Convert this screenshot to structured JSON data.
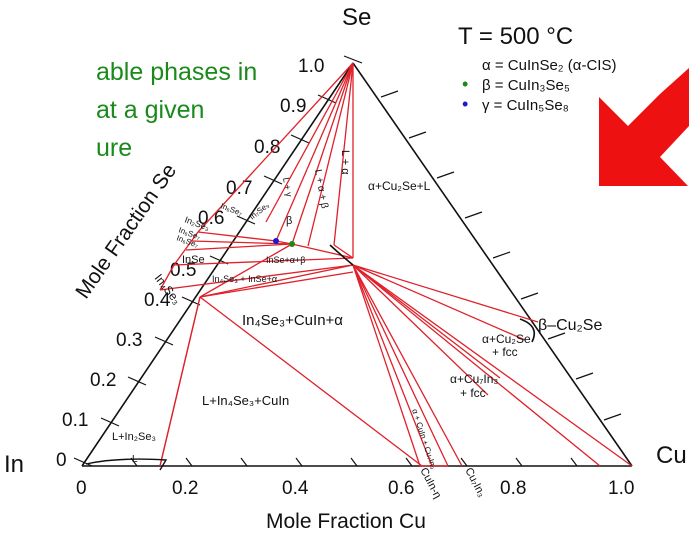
{
  "title_lines": [
    "able phases in",
    "at a given",
    "ure"
  ],
  "temperature": "T = 500 °C",
  "vertices": {
    "top": "Se",
    "left": "In",
    "right": "Cu"
  },
  "axes": {
    "left_label": "Mole Fraction Se",
    "bottom_label": "Mole Fraction Cu",
    "se_ticks": [
      "0",
      "0.1",
      "0.2",
      "0.3",
      "0.4",
      "0.5",
      "0.6",
      "0.7",
      "0.8",
      "0.9",
      "1.0"
    ],
    "cu_ticks": [
      "0",
      "0.2",
      "0.4",
      "0.6",
      "0.8",
      "1.0"
    ]
  },
  "legend": [
    {
      "symbol": "α",
      "text": "α = CuInSe₂ (α-CIS)",
      "dot": "",
      "color": "#111111"
    },
    {
      "symbol": "β",
      "text": "β = CuIn₃Se₅",
      "dot": "•",
      "color": "#1a8a1a"
    },
    {
      "symbol": "γ",
      "text": "γ = CuIn₅Se₈",
      "dot": "•",
      "color": "#1a1ad0"
    }
  ],
  "regions": {
    "alpha_cu2se_l": "α+Cu₂Se+L",
    "in4se3_cuin_alpha": "In₄Se₃+CuIn+α",
    "l_in4se3_cuin": "L+In₄Se₃+CuIn",
    "l_in2se3": "L+In₂Se₃",
    "l_small": "L",
    "alpha_cu2se_fcc_1": "α+Cu₂Se",
    "alpha_cu2se_fcc_2": "+ fcc",
    "alpha_cu7in3_fcc_1": "α+Cu₇In₃",
    "alpha_cu7in3_fcc_2": "+ fcc",
    "beta_cu2se": "β–Cu₂Se",
    "inse_alpha_beta": "InSe+α+β",
    "in4se3_inse_alpha": "In₄Se₃ + InSe+α",
    "inse": "InSe",
    "in4se3": "In₄Se₃",
    "in2se3_a": "In₂Se₃",
    "in6se7_a": "In₆Se₇",
    "in6se7_b": "In₆Se₇",
    "in6se7_c": "In₆Se₇",
    "in7se9": "In₇Se₉",
    "beta_label": "β",
    "v1": "L + γ",
    "v2": "L + α + β",
    "v3": "L + α",
    "cuin_eta": "CuIn-η",
    "cu7in3": "Cu₇In₃",
    "small_mix": "α + CuIn + Cu₇In₃"
  },
  "arrow_color": "#ee1111",
  "line_color": "#e0202a",
  "title_color": "#1a8a1a"
}
